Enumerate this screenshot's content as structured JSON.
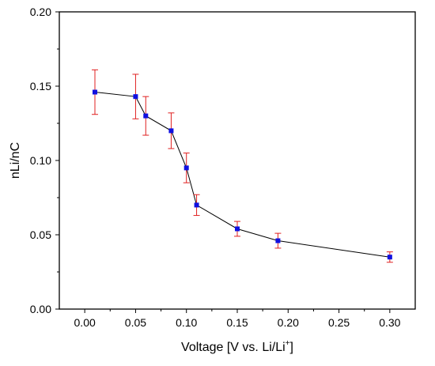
{
  "chart_data": {
    "type": "scatter",
    "title": "",
    "xlabel": "Voltage [V vs. Li/Li",
    "xlabel_sup": "+",
    "xlabel_end": "]",
    "ylabel": "nLi/nC",
    "xlim": [
      -0.025,
      0.325
    ],
    "ylim": [
      0.0,
      0.2
    ],
    "xticks": [
      "0.00",
      "0.05",
      "0.10",
      "0.15",
      "0.20",
      "0.25",
      "0.30"
    ],
    "yticks": [
      "0.00",
      "0.05",
      "0.10",
      "0.15",
      "0.20"
    ],
    "grid": false,
    "legend": "none",
    "series": [
      {
        "marker": "square",
        "line": true,
        "points": [
          {
            "x": 0.01,
            "y": 0.146,
            "err": 0.015
          },
          {
            "x": 0.05,
            "y": 0.143,
            "err": 0.015
          },
          {
            "x": 0.06,
            "y": 0.13,
            "err": 0.013
          },
          {
            "x": 0.085,
            "y": 0.12,
            "err": 0.012
          },
          {
            "x": 0.1,
            "y": 0.095,
            "err": 0.01
          },
          {
            "x": 0.11,
            "y": 0.07,
            "err": 0.007
          },
          {
            "x": 0.15,
            "y": 0.054,
            "err": 0.005
          },
          {
            "x": 0.19,
            "y": 0.046,
            "err": 0.005
          },
          {
            "x": 0.3,
            "y": 0.035,
            "err": 0.0035
          }
        ]
      }
    ],
    "colors": {
      "marker": "#1010e0",
      "line": "#000000",
      "errorbar": "#e02020",
      "axis": "#000000"
    }
  }
}
